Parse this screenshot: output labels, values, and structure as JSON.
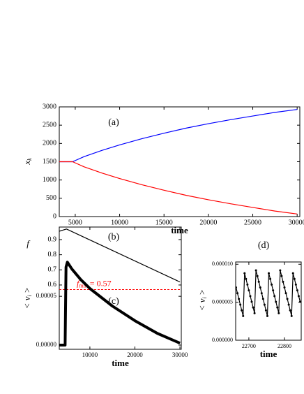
{
  "chart_data": [
    {
      "type": "line",
      "annotation": "(a)",
      "xlabel": "time",
      "ylabel": "x",
      "ylabel_sub": "k",
      "xlim": [
        3200,
        30300
      ],
      "xticks": [
        5000,
        10000,
        15000,
        20000,
        25000,
        30000
      ],
      "ylim": [
        0,
        3000
      ],
      "yticks": [
        0,
        500,
        1000,
        1500,
        2000,
        2500,
        3000
      ],
      "x": [
        3200,
        4700,
        6000,
        8000,
        10000,
        12500,
        15000,
        17500,
        20000,
        22500,
        25000,
        27500,
        30000
      ],
      "series": [
        {
          "color": "#0000ff",
          "values": [
            1500,
            1500,
            1640,
            1810,
            1960,
            2130,
            2280,
            2420,
            2540,
            2650,
            2750,
            2850,
            2930
          ]
        },
        {
          "color": "#ff0000",
          "values": [
            1500,
            1500,
            1360,
            1190,
            1040,
            870,
            720,
            580,
            460,
            350,
            250,
            150,
            70
          ]
        }
      ]
    },
    {
      "type": "line",
      "annotation": "(b)",
      "ylabel": "f",
      "xlim": [
        3200,
        30300
      ],
      "ylim": [
        0.175,
        0.983
      ],
      "yticks": [
        0.6,
        0.7,
        0.8,
        0.9
      ],
      "x": [
        3200,
        4800,
        30000
      ],
      "series": [
        {
          "color": "#000000",
          "values": [
            0.955,
            0.97,
            0.62
          ]
        }
      ],
      "hline": {
        "value": 0.57,
        "color": "#ff0000",
        "label": "f",
        "label_sub": "min",
        "label_rest": " = 0.57"
      }
    },
    {
      "type": "line",
      "annotation": "(c)",
      "xlabel": "time",
      "ylabel": "< v",
      "ylabel_sub": "i",
      "ylabel_rest": " >",
      "xlim": [
        3200,
        30300
      ],
      "xticks": [
        10000,
        20000,
        30000
      ],
      "ylim": [
        -4.3e-06,
        0.000121
      ],
      "yticks": [
        {
          "value": 0,
          "label": "0.00000"
        },
        {
          "value": 5e-05,
          "label": "0.00005"
        }
      ],
      "x": [
        3200,
        4500,
        4700,
        5000,
        6000,
        8000,
        10000,
        15000,
        20000,
        25000,
        30000
      ],
      "series": [
        {
          "color": "#000000",
          "values": [
            0,
            0,
            8e-05,
            8.5e-05,
            7.8e-05,
            6.7e-05,
            5.8e-05,
            4e-05,
            2.5e-05,
            1.2e-05,
            2e-06
          ]
        }
      ]
    },
    {
      "type": "line",
      "markers": true,
      "annotation": "(d)",
      "xlabel": "time",
      "ylabel": "< v",
      "ylabel_sub": "i",
      "ylabel_rest": " >",
      "xlim": [
        22663,
        22847
      ],
      "xticks": [
        22700,
        22800
      ],
      "ylim": [
        0,
        1.03e-05
      ],
      "yticks": [
        {
          "value": 0,
          "label": "0.000000"
        },
        {
          "value": 5e-06,
          "label": "0.000005"
        },
        {
          "value": 1e-05,
          "label": "0.000010"
        }
      ],
      "x": [
        22664,
        22668,
        22672,
        22676,
        22680,
        22684,
        22688,
        22692,
        22696,
        22700,
        22704,
        22708,
        22712,
        22716,
        22720,
        22724,
        22728,
        22732,
        22736,
        22740,
        22744,
        22748,
        22752,
        22756,
        22760,
        22764,
        22768,
        22772,
        22776,
        22780,
        22784,
        22788,
        22792,
        22796,
        22800,
        22804,
        22808,
        22812,
        22816,
        22820,
        22824,
        22828,
        22832,
        22836,
        22840,
        22844
      ],
      "series": [
        {
          "color": "#000000",
          "values": [
            6.94e-06,
            6.19e-06,
            5.44e-06,
            4.68e-06,
            3.93e-06,
            3.18e-06,
            8.82e-06,
            8.07e-06,
            7.32e-06,
            6.56e-06,
            5.81e-06,
            5.06e-06,
            4.31e-06,
            3.55e-06,
            9.2e-06,
            8.45e-06,
            7.69e-06,
            6.94e-06,
            6.19e-06,
            5.44e-06,
            4.68e-06,
            3.93e-06,
            3.18e-06,
            8.82e-06,
            8.07e-06,
            7.32e-06,
            6.56e-06,
            5.81e-06,
            5.06e-06,
            4.31e-06,
            3.55e-06,
            9.2e-06,
            8.45e-06,
            7.69e-06,
            6.94e-06,
            6.19e-06,
            5.44e-06,
            4.68e-06,
            3.93e-06,
            3.18e-06,
            8.82e-06,
            8.07e-06,
            7.32e-06,
            6.56e-06,
            5.81e-06,
            5.06e-06
          ]
        }
      ]
    }
  ]
}
